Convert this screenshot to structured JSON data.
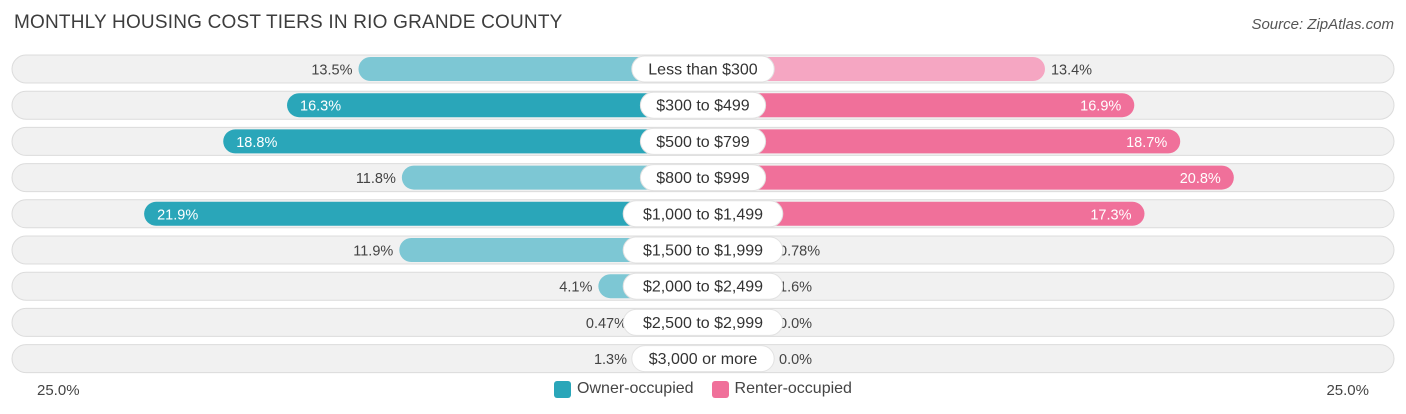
{
  "title": "MONTHLY HOUSING COST TIERS IN RIO GRANDE COUNTY",
  "source": "Source: ZipAtlas.com",
  "colors": {
    "owner": "#2aa6b9",
    "owner_light": "#7dc7d4",
    "renter": "#f0709a",
    "renter_light": "#f5a6c2",
    "row_bg": "#f0f0f0"
  },
  "legend": {
    "owner_label": "Owner-occupied",
    "renter_label": "Renter-occupied"
  },
  "axis": {
    "left_label": "25.0%",
    "right_label": "25.0%"
  },
  "chart_data": {
    "type": "bar",
    "title": "MONTHLY HOUSING COST TIERS IN RIO GRANDE COUNTY",
    "orientation": "diverging-horizontal",
    "xlim": [
      0,
      25
    ],
    "categories": [
      "Less than $300",
      "$300 to $499",
      "$500 to $799",
      "$800 to $999",
      "$1,000 to $1,499",
      "$1,500 to $1,999",
      "$2,000 to $2,499",
      "$2,500 to $2,999",
      "$3,000 or more"
    ],
    "series": [
      {
        "name": "Owner-occupied",
        "values": [
          13.5,
          16.3,
          18.8,
          11.8,
          21.9,
          11.9,
          4.1,
          0.47,
          1.3
        ],
        "labels": [
          "13.5%",
          "16.3%",
          "18.8%",
          "11.8%",
          "21.9%",
          "11.9%",
          "4.1%",
          "0.47%",
          "1.3%"
        ]
      },
      {
        "name": "Renter-occupied",
        "values": [
          13.4,
          16.9,
          18.7,
          20.8,
          17.3,
          0.78,
          1.6,
          0.0,
          0.0
        ],
        "labels": [
          "13.4%",
          "16.9%",
          "18.7%",
          "20.8%",
          "17.3%",
          "0.78%",
          "1.6%",
          "0.0%",
          "0.0%"
        ]
      }
    ],
    "legend_position": "bottom-center"
  }
}
